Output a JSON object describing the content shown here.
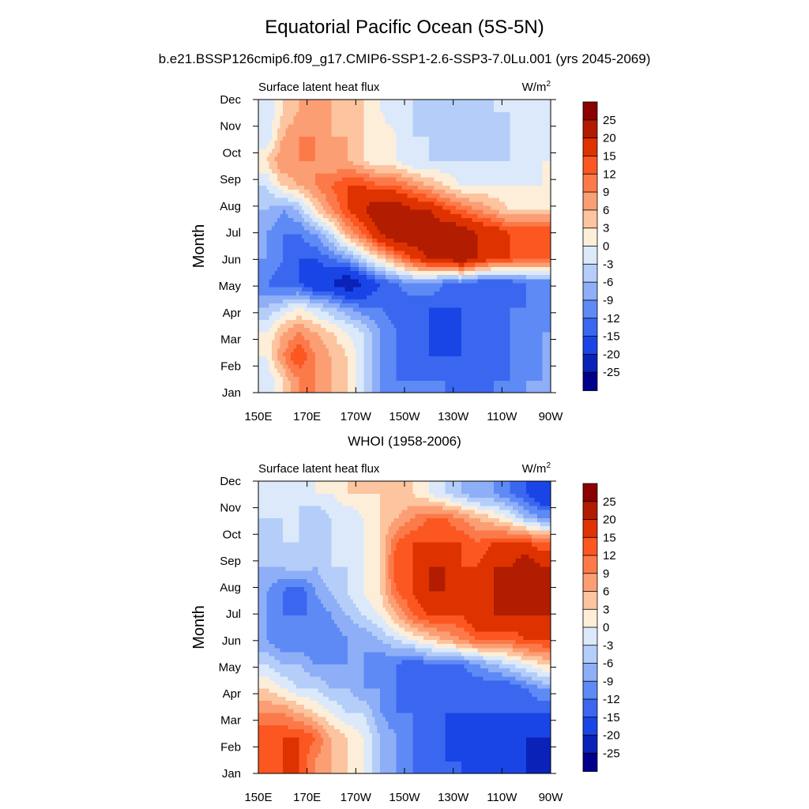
{
  "figure": {
    "title": "Equatorial Pacific Ocean (5S-5N)",
    "subtitle": "b.e21.BSSP126cmip6.f09_g17.CMIP6-SSP1-2.6-SSP3-7.0Lu.001 (yrs 2045-2069)"
  },
  "chart_data": [
    {
      "type": "heatmap",
      "title": "",
      "left_label": "Surface latent heat flux",
      "units": "W/m²",
      "ylabel": "Month",
      "xlabel": "",
      "x_ticks": [
        "150E",
        "170E",
        "170W",
        "150W",
        "130W",
        "110W",
        "90W"
      ],
      "y_ticks": [
        "Jan",
        "Feb",
        "Mar",
        "Apr",
        "May",
        "Jun",
        "Jul",
        "Aug",
        "Sep",
        "Oct",
        "Nov",
        "Dec"
      ],
      "colorbar_labels": [
        "25",
        "20",
        "15",
        "12",
        "9",
        "6",
        "3",
        "0",
        "-3",
        "-6",
        "-9",
        "-12",
        "-15",
        "-20",
        "-25"
      ],
      "colorbar_colors": [
        "#8b0000",
        "#b21c00",
        "#de3300",
        "#fc5621",
        "#fc7a4a",
        "#fc9e74",
        "#fcc49f",
        "#fdeed9",
        "#dbe9fa",
        "#b4cef9",
        "#8eaef7",
        "#5e8af6",
        "#3b67f0",
        "#1a45e6",
        "#0a22b8",
        "#00008b"
      ],
      "grid_rows": [
        [
          -3,
          3,
          9,
          9,
          6,
          3,
          -3,
          -9,
          -12,
          -12,
          -12,
          -12,
          -15,
          -15,
          -12,
          -12,
          -9,
          -9
        ],
        [
          0,
          9,
          15,
          9,
          6,
          3,
          -3,
          -9,
          -12,
          -15,
          -15,
          -15,
          -15,
          -15,
          -15,
          -12,
          -12,
          -9
        ],
        [
          0,
          6,
          9,
          6,
          3,
          0,
          -3,
          -9,
          -12,
          -15,
          -15,
          -20,
          -15,
          -15,
          -15,
          -12,
          -12,
          -9
        ],
        [
          -6,
          -3,
          0,
          -3,
          -6,
          -9,
          -12,
          -12,
          -15,
          -15,
          -15,
          -15,
          -15,
          -15,
          -15,
          -12,
          -12,
          -12
        ],
        [
          -12,
          -15,
          -15,
          -20,
          -20,
          -25,
          -20,
          -15,
          -12,
          -9,
          -9,
          -12,
          -12,
          -15,
          -15,
          -15,
          -12,
          -12
        ],
        [
          -9,
          -12,
          -15,
          -15,
          -12,
          -9,
          -3,
          3,
          9,
          15,
          20,
          20,
          25,
          20,
          15,
          15,
          12,
          12
        ],
        [
          -9,
          -12,
          -12,
          -9,
          -3,
          6,
          12,
          20,
          25,
          25,
          25,
          25,
          25,
          20,
          20,
          15,
          15,
          15
        ],
        [
          -6,
          -9,
          -6,
          3,
          9,
          15,
          20,
          25,
          25,
          20,
          20,
          15,
          12,
          9,
          6,
          3,
          3,
          3
        ],
        [
          -3,
          3,
          6,
          9,
          12,
          15,
          15,
          12,
          12,
          9,
          6,
          3,
          0,
          0,
          0,
          0,
          0,
          0
        ],
        [
          3,
          9,
          9,
          9,
          6,
          6,
          3,
          0,
          0,
          -3,
          -3,
          -3,
          -3,
          -3,
          -3,
          -3,
          -3,
          0
        ],
        [
          -3,
          6,
          9,
          9,
          6,
          6,
          3,
          3,
          0,
          -3,
          -3,
          -6,
          -6,
          -6,
          -6,
          -3,
          -3,
          -3
        ],
        [
          -3,
          3,
          6,
          6,
          6,
          3,
          3,
          0,
          -3,
          -3,
          -6,
          -6,
          -6,
          -6,
          -3,
          -3,
          -3,
          -3
        ]
      ]
    },
    {
      "type": "heatmap",
      "title": "WHOI (1958-2006)",
      "left_label": "Surface latent heat flux",
      "units": "W/m²",
      "ylabel": "Month",
      "xlabel": "",
      "x_ticks": [
        "150E",
        "170E",
        "170W",
        "150W",
        "130W",
        "110W",
        "90W"
      ],
      "y_ticks": [
        "Jan",
        "Feb",
        "Mar",
        "Apr",
        "May",
        "Jun",
        "Jul",
        "Aug",
        "Sep",
        "Oct",
        "Nov",
        "Dec"
      ],
      "colorbar_labels": [
        "25",
        "20",
        "15",
        "12",
        "9",
        "6",
        "3",
        "0",
        "-3",
        "-6",
        "-9",
        "-12",
        "-15",
        "-20",
        "-25"
      ],
      "colorbar_colors": [
        "#8b0000",
        "#b21c00",
        "#de3300",
        "#fc5621",
        "#fc7a4a",
        "#fc9e74",
        "#fcc49f",
        "#fdeed9",
        "#dbe9fa",
        "#b4cef9",
        "#8eaef7",
        "#5e8af6",
        "#3b67f0",
        "#1a45e6",
        "#0a22b8",
        "#00008b"
      ],
      "grid_rows": [
        [
          12,
          15,
          15,
          9,
          6,
          3,
          0,
          -6,
          -9,
          -12,
          -15,
          -15,
          -15,
          -20,
          -20,
          -20,
          -20,
          -25
        ],
        [
          15,
          15,
          15,
          12,
          6,
          3,
          0,
          -6,
          -9,
          -12,
          -15,
          -15,
          -20,
          -20,
          -20,
          -20,
          -20,
          -20
        ],
        [
          9,
          9,
          6,
          3,
          0,
          -3,
          -3,
          -9,
          -12,
          -12,
          -15,
          -15,
          -15,
          -15,
          -15,
          -15,
          -15,
          -15
        ],
        [
          3,
          0,
          -3,
          -3,
          -6,
          -6,
          -9,
          -9,
          -12,
          -15,
          -15,
          -15,
          -15,
          -15,
          -15,
          -15,
          -12,
          -9
        ],
        [
          -3,
          -6,
          -6,
          -9,
          -9,
          -9,
          -9,
          -12,
          -12,
          -15,
          -12,
          -12,
          -12,
          -9,
          -6,
          -3,
          0,
          3
        ],
        [
          -9,
          -12,
          -12,
          -12,
          -12,
          -9,
          -9,
          -6,
          -3,
          0,
          3,
          6,
          9,
          12,
          12,
          12,
          15,
          15
        ],
        [
          -9,
          -12,
          -12,
          -12,
          -9,
          -6,
          -3,
          0,
          6,
          12,
          15,
          15,
          15,
          20,
          20,
          20,
          20,
          20
        ],
        [
          -9,
          -12,
          -15,
          -9,
          -6,
          -3,
          0,
          3,
          12,
          15,
          20,
          20,
          15,
          15,
          20,
          20,
          20,
          20
        ],
        [
          -6,
          -6,
          -3,
          -6,
          -3,
          -3,
          0,
          3,
          15,
          15,
          20,
          20,
          15,
          15,
          20,
          20,
          25,
          20
        ],
        [
          -6,
          -3,
          -3,
          -3,
          -3,
          -3,
          0,
          3,
          12,
          15,
          15,
          15,
          15,
          12,
          15,
          15,
          15,
          12
        ],
        [
          -3,
          -3,
          -3,
          -6,
          -3,
          -3,
          0,
          3,
          6,
          9,
          12,
          12,
          9,
          6,
          3,
          0,
          -6,
          -9
        ],
        [
          -3,
          -3,
          -3,
          0,
          0,
          3,
          3,
          3,
          3,
          3,
          0,
          -3,
          -6,
          -9,
          -9,
          -12,
          -15,
          -20
        ]
      ]
    }
  ]
}
